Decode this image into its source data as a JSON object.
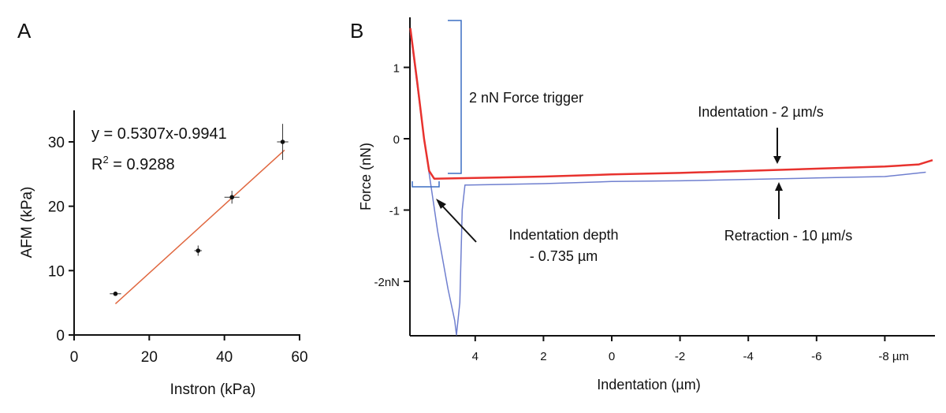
{
  "chart_data": [
    {
      "panel_label": "A",
      "type": "scatter",
      "xlabel": "Instron (kPa)",
      "ylabel": "AFM (kPa)",
      "xlim": [
        0,
        60
      ],
      "ylim": [
        0,
        35
      ],
      "xticks": [
        "0",
        "20",
        "40",
        "60"
      ],
      "yticks": [
        "0",
        "10",
        "20",
        "30"
      ],
      "grid": false,
      "points": [
        {
          "x": 11,
          "y": 6.4,
          "xerr": 1.5,
          "yerr": 0.3
        },
        {
          "x": 33,
          "y": 13.1,
          "xerr": 1.0,
          "yerr": 0.8
        },
        {
          "x": 42,
          "y": 21.4,
          "xerr": 2.0,
          "yerr": 1.0
        },
        {
          "x": 55.5,
          "y": 30,
          "xerr": 1.5,
          "yerr": 2.8
        }
      ],
      "fit": {
        "slope": 0.5307,
        "intercept": -0.9941,
        "x_range": [
          11,
          56
        ],
        "color": "#e0673f"
      },
      "annotations": {
        "equation": "y = 0.5307x-0.9941",
        "r2_prefix": "R",
        "r2_sup": "2",
        "r2_value": " = 0.9288"
      }
    },
    {
      "panel_label": "B",
      "type": "line",
      "xlabel": "Indentation (µm)",
      "ylabel": "Force (nN)",
      "xlim": [
        5.9,
        -9.4
      ],
      "ylim": [
        -2.75,
        1.7
      ],
      "xticks": [
        "4",
        "2",
        "0",
        "-2",
        "-4",
        "-6",
        "-8 µm"
      ],
      "xtick_values": [
        4,
        2,
        0,
        -2,
        -4,
        -6,
        -8
      ],
      "yticks": [
        "1",
        "0",
        "-1",
        "-2nN"
      ],
      "ytick_values": [
        1,
        0,
        -1,
        -2
      ],
      "grid": false,
      "series": [
        {
          "name": "Indentation - 2 µm/s",
          "color": "#e8322e",
          "x": [
            5.9,
            5.7,
            5.5,
            5.35,
            5.2,
            4,
            2,
            0,
            -2,
            -4,
            -6,
            -8,
            -9,
            -9.4
          ],
          "y": [
            1.55,
            0.8,
            0.0,
            -0.45,
            -0.56,
            -0.55,
            -0.53,
            -0.5,
            -0.48,
            -0.45,
            -0.42,
            -0.39,
            -0.36,
            -0.3
          ]
        },
        {
          "name": "Retraction - 10 µm/s",
          "color": "#6f7fcf",
          "x": [
            5.9,
            5.5,
            5.1,
            4.8,
            4.6,
            4.55,
            4.45,
            4.38,
            4.3,
            4.2,
            2,
            0,
            -2,
            -4,
            -6,
            -8,
            -9.2
          ],
          "y": [
            1.5,
            0.0,
            -1.3,
            -2.1,
            -2.55,
            -2.75,
            -2.3,
            -1.0,
            -0.65,
            -0.65,
            -0.63,
            -0.6,
            -0.59,
            -0.57,
            -0.55,
            -0.53,
            -0.47
          ]
        }
      ],
      "annotations": {
        "force_trigger": "2 nN Force trigger",
        "depth_line1": "Indentation depth",
        "depth_line2": "- 0.735 µm",
        "indentation": "Indentation - 2 µm/s",
        "retraction": "Retraction - 10 µm/s",
        "bracket_color": "#3b6fc4"
      }
    }
  ]
}
